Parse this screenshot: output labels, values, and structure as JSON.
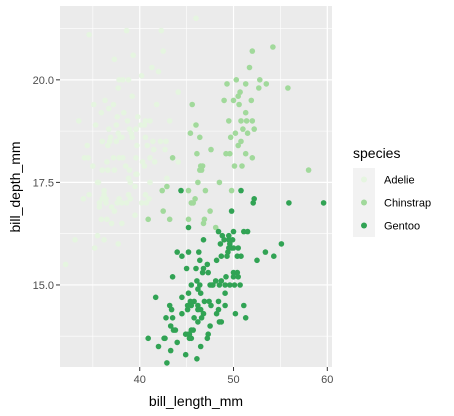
{
  "chart_data": {
    "type": "scatter",
    "xlabel": "bill_length_mm",
    "ylabel": "bill_depth_mm",
    "xlim": [
      31.5,
      60.5
    ],
    "ylim": [
      13.0,
      21.8
    ],
    "x_ticks": [
      40,
      50,
      60
    ],
    "x_tick_labels": [
      "40",
      "50",
      "60"
    ],
    "y_ticks": [
      15.0,
      17.5,
      20.0
    ],
    "y_tick_labels": [
      "15.0",
      "17.5",
      "20.0"
    ],
    "grid": true,
    "legend_position": "right",
    "legend_title": "species",
    "series": [
      {
        "name": "Adelie",
        "color": "#e5f5e0",
        "points": [
          [
            32.1,
            15.5
          ],
          [
            33.1,
            16.1
          ],
          [
            33.5,
            19.0
          ],
          [
            34.0,
            17.1
          ],
          [
            34.1,
            18.1
          ],
          [
            34.4,
            18.4
          ],
          [
            34.5,
            18.1
          ],
          [
            34.6,
            17.2
          ],
          [
            34.6,
            21.1
          ],
          [
            35.0,
            17.9
          ],
          [
            35.1,
            19.4
          ],
          [
            35.2,
            15.9
          ],
          [
            35.3,
            18.9
          ],
          [
            35.5,
            16.2
          ],
          [
            35.5,
            17.5
          ],
          [
            35.6,
            17.5
          ],
          [
            35.7,
            16.9
          ],
          [
            35.7,
            17.0
          ],
          [
            35.9,
            16.6
          ],
          [
            35.9,
            19.2
          ],
          [
            36.0,
            17.1
          ],
          [
            36.0,
            17.8
          ],
          [
            36.0,
            18.5
          ],
          [
            36.2,
            16.1
          ],
          [
            36.2,
            17.2
          ],
          [
            36.2,
            17.3
          ],
          [
            36.3,
            19.5
          ],
          [
            36.4,
            17.0
          ],
          [
            36.4,
            17.1
          ],
          [
            36.5,
            16.6
          ],
          [
            36.5,
            18.0
          ],
          [
            36.6,
            17.8
          ],
          [
            36.6,
            18.4
          ],
          [
            36.7,
            18.8
          ],
          [
            36.7,
            19.3
          ],
          [
            36.8,
            18.5
          ],
          [
            36.9,
            18.6
          ],
          [
            37.0,
            16.5
          ],
          [
            37.0,
            16.9
          ],
          [
            37.2,
            18.1
          ],
          [
            37.2,
            19.4
          ],
          [
            37.3,
            16.8
          ],
          [
            37.3,
            17.8
          ],
          [
            37.3,
            20.5
          ],
          [
            37.5,
            18.5
          ],
          [
            37.5,
            18.9
          ],
          [
            37.6,
            17.0
          ],
          [
            37.6,
            19.1
          ],
          [
            37.7,
            16.0
          ],
          [
            37.7,
            18.7
          ],
          [
            37.7,
            19.8
          ],
          [
            37.8,
            17.1
          ],
          [
            37.8,
            18.1
          ],
          [
            37.8,
            20.0
          ],
          [
            37.9,
            18.6
          ],
          [
            38.1,
            17.0
          ],
          [
            38.1,
            18.6
          ],
          [
            38.1,
            16.5
          ],
          [
            38.2,
            18.1
          ],
          [
            38.2,
            20.0
          ],
          [
            38.3,
            19.2
          ],
          [
            38.5,
            17.9
          ],
          [
            38.6,
            17.0
          ],
          [
            38.6,
            21.2
          ],
          [
            38.7,
            19.0
          ],
          [
            38.8,
            17.2
          ],
          [
            38.8,
            17.6
          ],
          [
            38.8,
            20.0
          ],
          [
            38.9,
            17.8
          ],
          [
            38.9,
            18.8
          ],
          [
            39.0,
            17.1
          ],
          [
            39.0,
            17.5
          ],
          [
            39.1,
            18.7
          ],
          [
            39.2,
            18.6
          ],
          [
            39.2,
            19.6
          ],
          [
            39.3,
            20.6
          ],
          [
            39.5,
            16.7
          ],
          [
            39.5,
            17.4
          ],
          [
            39.6,
            17.7
          ],
          [
            39.6,
            18.1
          ],
          [
            39.6,
            18.8
          ],
          [
            39.7,
            17.7
          ],
          [
            39.7,
            18.4
          ],
          [
            39.8,
            19.1
          ],
          [
            40.1,
            18.9
          ],
          [
            40.2,
            17.0
          ],
          [
            40.2,
            20.1
          ],
          [
            40.3,
            18.0
          ],
          [
            40.5,
            17.9
          ],
          [
            40.5,
            18.9
          ],
          [
            40.6,
            17.2
          ],
          [
            40.6,
            18.6
          ],
          [
            40.6,
            19.0
          ],
          [
            40.7,
            17.0
          ],
          [
            40.8,
            18.4
          ],
          [
            40.9,
            16.6
          ],
          [
            41.0,
            17.1
          ],
          [
            41.1,
            17.5
          ],
          [
            41.1,
            18.1
          ],
          [
            41.1,
            19.0
          ],
          [
            41.3,
            20.3
          ],
          [
            41.4,
            18.5
          ],
          [
            41.5,
            18.3
          ],
          [
            41.6,
            18.0
          ],
          [
            41.8,
            19.4
          ],
          [
            42.0,
            20.2
          ],
          [
            42.2,
            18.5
          ],
          [
            42.3,
            21.2
          ],
          [
            42.5,
            20.7
          ],
          [
            42.7,
            18.3
          ],
          [
            42.8,
            18.5
          ],
          [
            42.9,
            17.6
          ],
          [
            43.2,
            19.0
          ],
          [
            44.1,
            18.0
          ],
          [
            44.1,
            19.7
          ],
          [
            45.8,
            18.9
          ],
          [
            46.0,
            21.5
          ]
        ]
      },
      {
        "name": "Chinstrap",
        "color": "#a1d99b",
        "points": [
          [
            40.9,
            16.6
          ],
          [
            42.4,
            17.3
          ],
          [
            42.5,
            16.8
          ],
          [
            42.9,
            17.4
          ],
          [
            43.2,
            16.6
          ],
          [
            43.5,
            18.1
          ],
          [
            45.2,
            16.6
          ],
          [
            45.2,
            17.3
          ],
          [
            45.4,
            18.7
          ],
          [
            45.5,
            17.0
          ],
          [
            45.6,
            19.4
          ],
          [
            45.7,
            17.0
          ],
          [
            45.9,
            17.1
          ],
          [
            46.0,
            18.9
          ],
          [
            46.1,
            18.2
          ],
          [
            46.2,
            17.5
          ],
          [
            46.4,
            17.8
          ],
          [
            46.4,
            18.6
          ],
          [
            46.5,
            17.9
          ],
          [
            46.6,
            17.8
          ],
          [
            46.7,
            17.9
          ],
          [
            46.8,
            16.5
          ],
          [
            46.9,
            16.6
          ],
          [
            47.0,
            17.3
          ],
          [
            47.5,
            16.8
          ],
          [
            47.6,
            18.3
          ],
          [
            48.1,
            16.4
          ],
          [
            48.5,
            17.5
          ],
          [
            49.0,
            19.5
          ],
          [
            49.2,
            18.2
          ],
          [
            49.3,
            19.9
          ],
          [
            49.5,
            19.0
          ],
          [
            49.6,
            18.2
          ],
          [
            49.7,
            18.6
          ],
          [
            49.8,
            17.3
          ],
          [
            50.0,
            19.5
          ],
          [
            50.1,
            17.9
          ],
          [
            50.2,
            18.7
          ],
          [
            50.3,
            20.0
          ],
          [
            50.5,
            18.4
          ],
          [
            50.5,
            19.6
          ],
          [
            50.6,
            19.4
          ],
          [
            50.7,
            19.7
          ],
          [
            50.8,
            18.5
          ],
          [
            50.8,
            19.0
          ],
          [
            50.9,
            17.9
          ],
          [
            51.0,
            18.8
          ],
          [
            51.3,
            18.2
          ],
          [
            51.3,
            19.2
          ],
          [
            51.3,
            19.9
          ],
          [
            51.4,
            19.0
          ],
          [
            51.5,
            18.7
          ],
          [
            51.7,
            20.3
          ],
          [
            51.9,
            19.5
          ],
          [
            52.0,
            18.1
          ],
          [
            52.0,
            19.0
          ],
          [
            52.0,
            20.7
          ],
          [
            52.2,
            18.8
          ],
          [
            52.7,
            19.8
          ],
          [
            52.8,
            20.0
          ],
          [
            53.5,
            19.9
          ],
          [
            54.2,
            20.8
          ],
          [
            55.8,
            19.8
          ],
          [
            58.0,
            17.8
          ]
        ]
      },
      {
        "name": "Gentoo",
        "color": "#31a354",
        "points": [
          [
            40.9,
            13.7
          ],
          [
            41.7,
            14.7
          ],
          [
            42.0,
            13.5
          ],
          [
            42.6,
            13.7
          ],
          [
            42.7,
            13.7
          ],
          [
            42.8,
            14.2
          ],
          [
            42.9,
            13.1
          ],
          [
            43.2,
            14.5
          ],
          [
            43.3,
            13.4
          ],
          [
            43.3,
            14.0
          ],
          [
            43.4,
            14.4
          ],
          [
            43.5,
            14.2
          ],
          [
            43.5,
            15.2
          ],
          [
            43.6,
            13.9
          ],
          [
            43.8,
            13.9
          ],
          [
            44.0,
            13.6
          ],
          [
            44.4,
            17.3
          ],
          [
            44.5,
            14.3
          ],
          [
            44.5,
            14.7
          ],
          [
            44.5,
            15.7
          ],
          [
            44.9,
            13.3
          ],
          [
            44.9,
            13.8
          ],
          [
            45.0,
            15.4
          ],
          [
            45.1,
            14.4
          ],
          [
            45.1,
            14.5
          ],
          [
            45.2,
            13.8
          ],
          [
            45.2,
            14.8
          ],
          [
            45.2,
            15.8
          ],
          [
            45.2,
            16.4
          ],
          [
            45.3,
            13.7
          ],
          [
            45.3,
            13.8
          ],
          [
            45.4,
            14.6
          ],
          [
            45.5,
            13.7
          ],
          [
            45.5,
            13.9
          ],
          [
            45.5,
            14.5
          ],
          [
            45.5,
            15.0
          ],
          [
            45.7,
            13.9
          ],
          [
            45.8,
            14.2
          ],
          [
            45.8,
            14.6
          ],
          [
            46.1,
            13.2
          ],
          [
            46.1,
            15.1
          ],
          [
            46.2,
            14.1
          ],
          [
            46.2,
            14.4
          ],
          [
            46.2,
            14.5
          ],
          [
            46.2,
            14.9
          ],
          [
            46.3,
            15.8
          ],
          [
            46.4,
            15.0
          ],
          [
            46.4,
            15.6
          ],
          [
            46.5,
            13.5
          ],
          [
            46.5,
            14.4
          ],
          [
            46.5,
            14.8
          ],
          [
            46.6,
            14.2
          ],
          [
            46.7,
            15.3
          ],
          [
            46.8,
            14.3
          ],
          [
            46.8,
            15.4
          ],
          [
            46.8,
            16.1
          ],
          [
            46.9,
            14.6
          ],
          [
            47.2,
            13.7
          ],
          [
            47.2,
            15.5
          ],
          [
            47.3,
            13.8
          ],
          [
            47.3,
            15.3
          ],
          [
            47.4,
            14.6
          ],
          [
            47.5,
            14.0
          ],
          [
            47.5,
            15.0
          ],
          [
            47.6,
            14.5
          ],
          [
            47.7,
            15.0
          ],
          [
            47.8,
            15.0
          ],
          [
            48.1,
            15.1
          ],
          [
            48.2,
            14.3
          ],
          [
            48.2,
            15.6
          ],
          [
            48.4,
            14.4
          ],
          [
            48.4,
            14.6
          ],
          [
            48.4,
            16.3
          ],
          [
            48.5,
            14.1
          ],
          [
            48.5,
            15.0
          ],
          [
            48.6,
            16.0
          ],
          [
            48.7,
            14.1
          ],
          [
            48.7,
            15.1
          ],
          [
            48.7,
            15.7
          ],
          [
            48.8,
            16.2
          ],
          [
            49.0,
            16.1
          ],
          [
            49.1,
            14.5
          ],
          [
            49.1,
            14.8
          ],
          [
            49.1,
            15.0
          ],
          [
            49.2,
            15.2
          ],
          [
            49.3,
            15.7
          ],
          [
            49.4,
            15.8
          ],
          [
            49.5,
            15.9
          ],
          [
            49.5,
            16.1
          ],
          [
            49.6,
            15.0
          ],
          [
            49.6,
            16.0
          ],
          [
            49.8,
            15.9
          ],
          [
            49.8,
            16.8
          ],
          [
            49.9,
            16.1
          ],
          [
            50.0,
            15.2
          ],
          [
            50.0,
            15.3
          ],
          [
            50.0,
            15.9
          ],
          [
            50.0,
            16.3
          ],
          [
            50.1,
            15.0
          ],
          [
            50.2,
            14.3
          ],
          [
            50.4,
            15.3
          ],
          [
            50.4,
            15.7
          ],
          [
            50.5,
            15.2
          ],
          [
            50.5,
            15.9
          ],
          [
            50.7,
            15.0
          ],
          [
            50.8,
            15.7
          ],
          [
            50.8,
            17.3
          ],
          [
            51.1,
            14.5
          ],
          [
            51.1,
            16.3
          ],
          [
            51.3,
            14.2
          ],
          [
            51.5,
            16.3
          ],
          [
            52.1,
            17.0
          ],
          [
            52.2,
            17.1
          ],
          [
            52.5,
            15.6
          ],
          [
            53.4,
            15.8
          ],
          [
            54.3,
            15.7
          ],
          [
            55.1,
            16.0
          ],
          [
            55.9,
            17.0
          ],
          [
            59.6,
            17.0
          ],
          [
            49.5,
            16.2
          ],
          [
            44.0,
            15.8
          ],
          [
            46.0,
            15.4
          ]
        ]
      }
    ]
  }
}
